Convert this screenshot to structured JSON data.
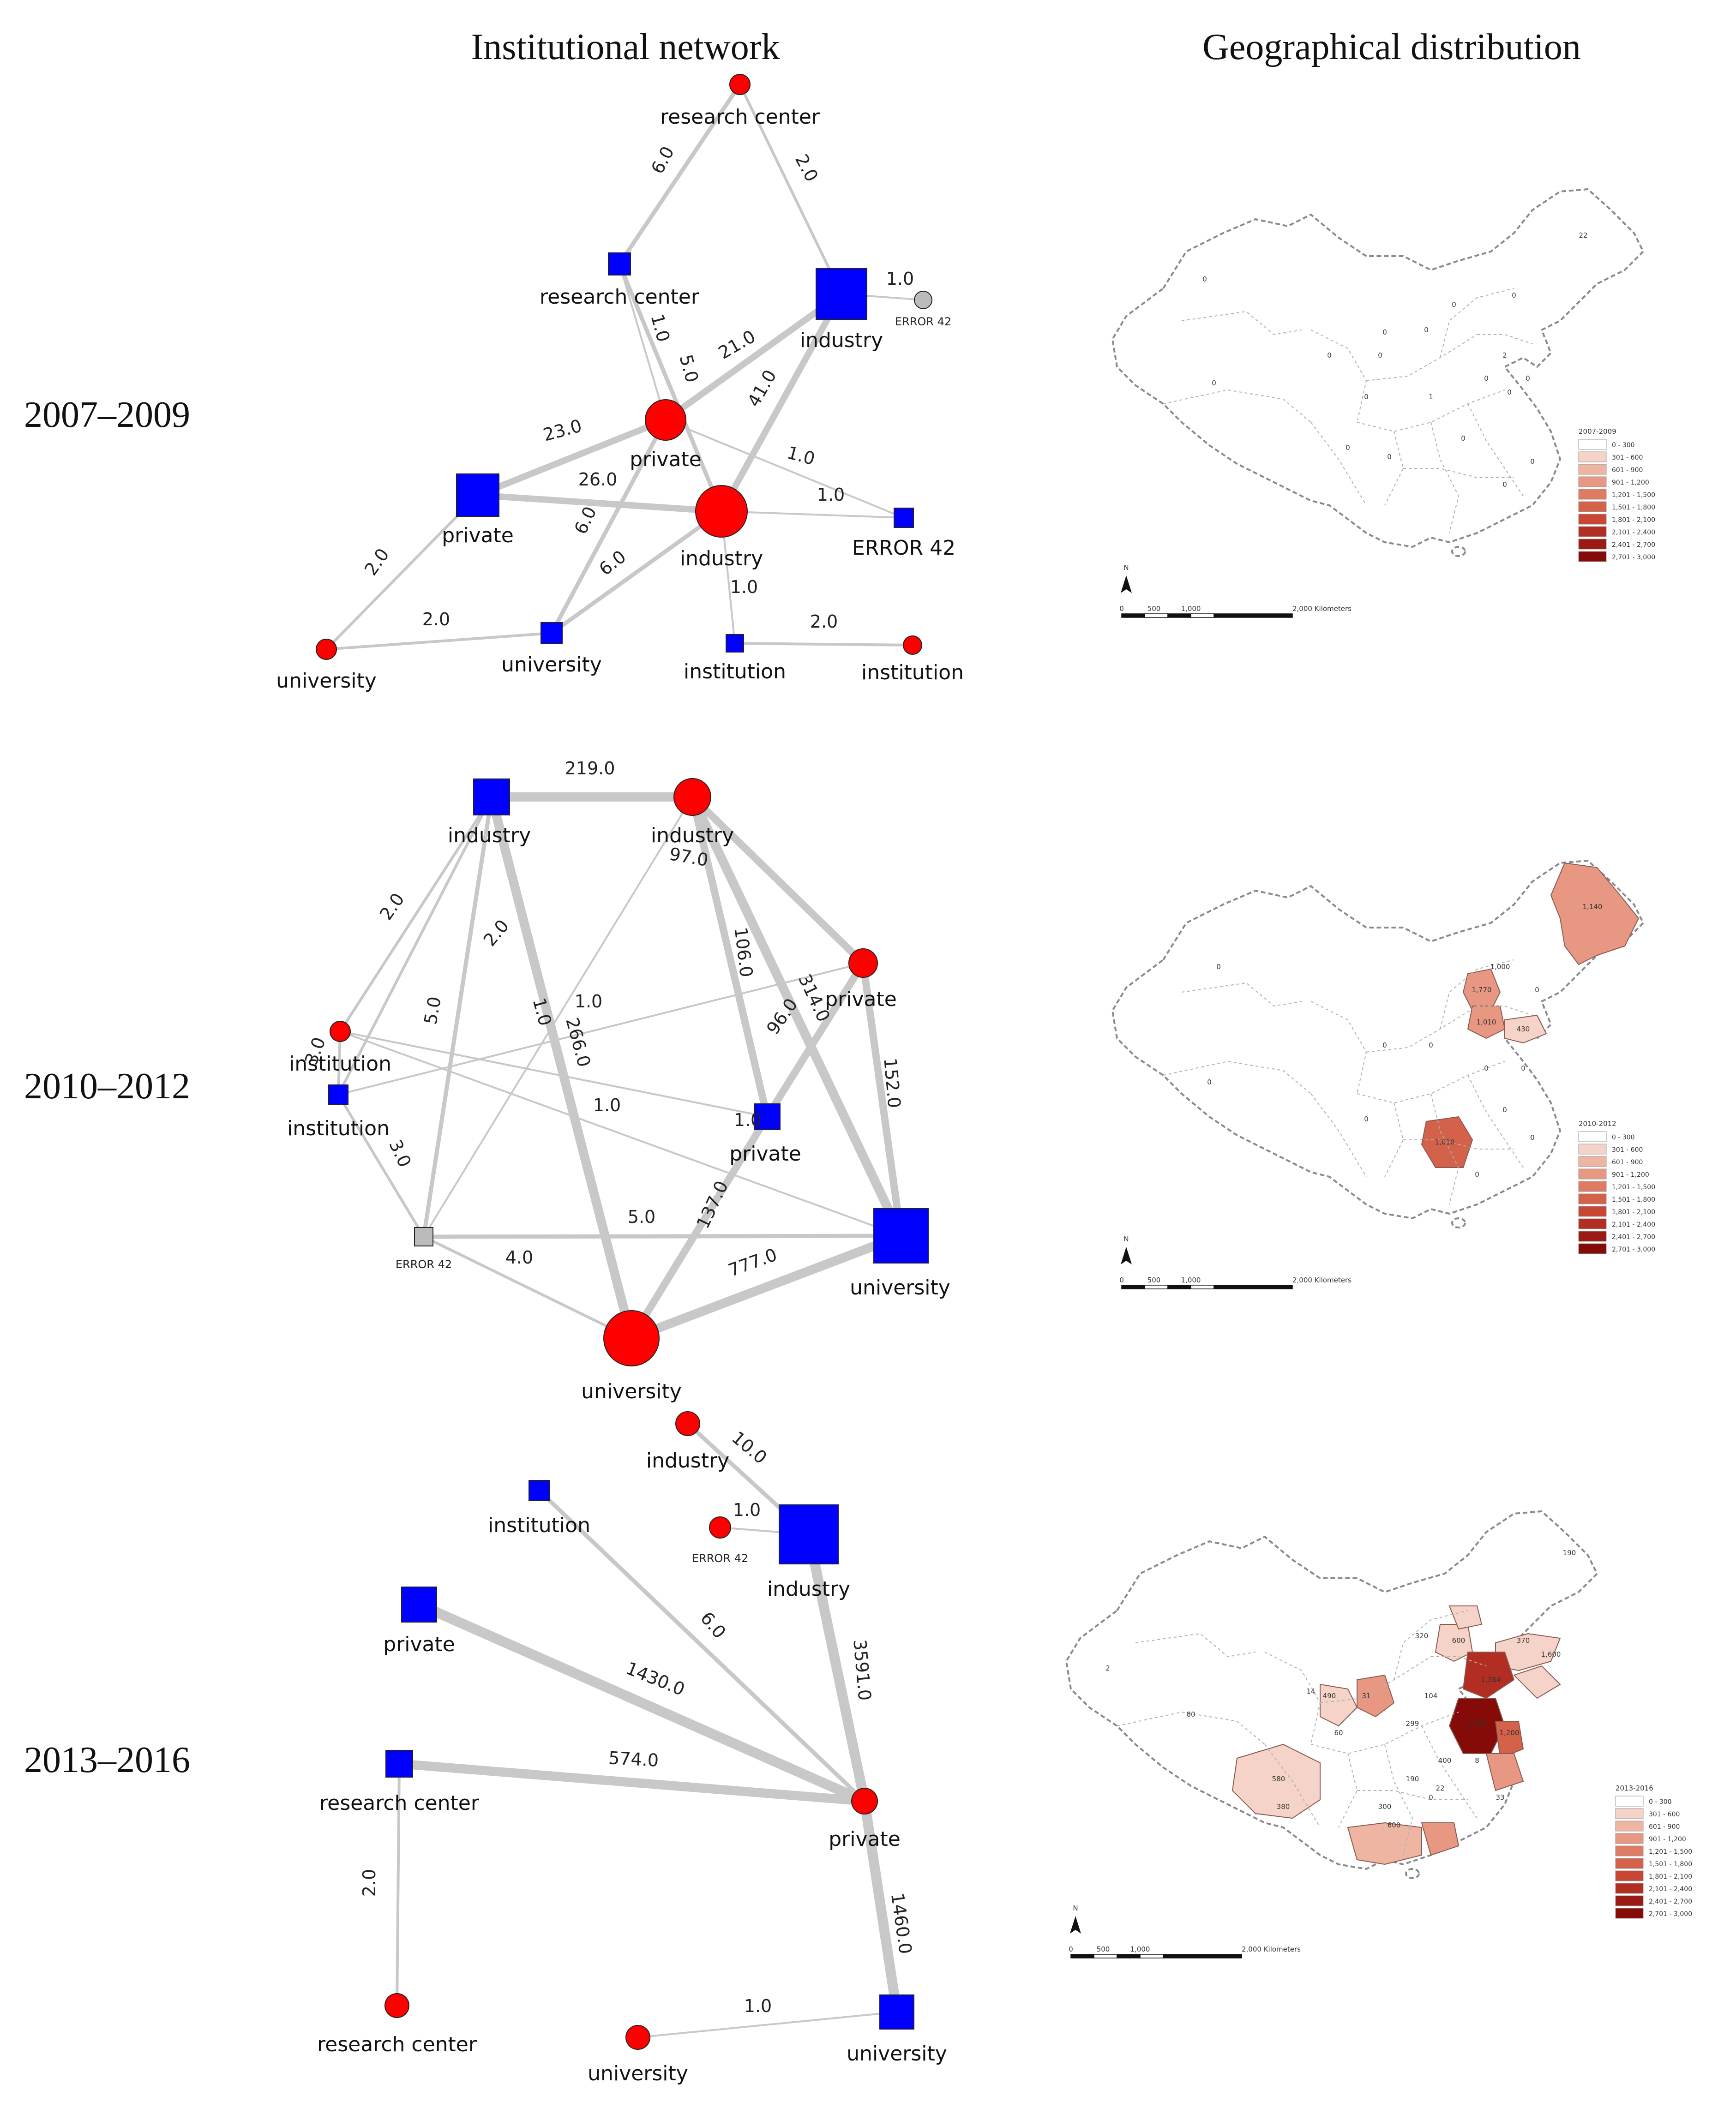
{
  "column_titles": {
    "network": "Institutional network",
    "geography": "Geographical distribution"
  },
  "colors": {
    "blue_node": "#0000ff",
    "red_node": "#ff0000",
    "gray_node": "#bbbbbb",
    "edge": "#c8c8c8"
  },
  "panels": [
    {
      "period": "2007–2009",
      "nodes": [
        {
          "id": "p1_rc_red",
          "label": "research center",
          "shape": "circle",
          "color": "red"
        },
        {
          "id": "p1_rc_blue",
          "label": "research center",
          "shape": "square",
          "color": "blue"
        },
        {
          "id": "p1_ind_blue",
          "label": "industry",
          "shape": "square",
          "color": "blue"
        },
        {
          "id": "p1_err_gray",
          "label": "ERROR 42",
          "shape": "circle",
          "color": "gray"
        },
        {
          "id": "p1_priv_red",
          "label": "private",
          "shape": "circle",
          "color": "red"
        },
        {
          "id": "p1_priv_blue",
          "label": "private",
          "shape": "square",
          "color": "blue"
        },
        {
          "id": "p1_ind_red",
          "label": "industry",
          "shape": "circle",
          "color": "red"
        },
        {
          "id": "p1_err_blue",
          "label": "ERROR 42",
          "shape": "square",
          "color": "blue"
        },
        {
          "id": "p1_uni_red",
          "label": "university",
          "shape": "circle",
          "color": "red"
        },
        {
          "id": "p1_uni_blue",
          "label": "university",
          "shape": "square",
          "color": "blue"
        },
        {
          "id": "p1_inst_blue",
          "label": "institution",
          "shape": "square",
          "color": "blue"
        },
        {
          "id": "p1_inst_red",
          "label": "institution",
          "shape": "circle",
          "color": "red"
        }
      ],
      "edges": [
        {
          "from": "p1_rc_red",
          "to": "p1_rc_blue",
          "weight": "6.0"
        },
        {
          "from": "p1_rc_red",
          "to": "p1_ind_blue",
          "weight": "2.0"
        },
        {
          "from": "p1_ind_blue",
          "to": "p1_err_gray",
          "weight": "1.0"
        },
        {
          "from": "p1_rc_blue",
          "to": "p1_priv_red",
          "weight": "1.0"
        },
        {
          "from": "p1_rc_blue",
          "to": "p1_ind_red",
          "weight": "5.0"
        },
        {
          "from": "p1_ind_blue",
          "to": "p1_priv_red",
          "weight": "21.0"
        },
        {
          "from": "p1_ind_blue",
          "to": "p1_ind_red",
          "weight": "41.0"
        },
        {
          "from": "p1_priv_red",
          "to": "p1_priv_blue",
          "weight": "23.0"
        },
        {
          "from": "p1_priv_red",
          "to": "p1_err_blue",
          "weight": "1.0"
        },
        {
          "from": "p1_priv_blue",
          "to": "p1_ind_red",
          "weight": "26.0"
        },
        {
          "from": "p1_ind_red",
          "to": "p1_err_blue",
          "weight": "1.0"
        },
        {
          "from": "p1_priv_red",
          "to": "p1_uni_blue",
          "weight": "6.0"
        },
        {
          "from": "p1_ind_red",
          "to": "p1_uni_blue",
          "weight": "6.0"
        },
        {
          "from": "p1_ind_red",
          "to": "p1_inst_blue",
          "weight": "1.0"
        },
        {
          "from": "p1_priv_blue",
          "to": "p1_uni_red",
          "weight": "2.0"
        },
        {
          "from": "p1_uni_red",
          "to": "p1_uni_blue",
          "weight": "2.0"
        },
        {
          "from": "p1_inst_blue",
          "to": "p1_inst_red",
          "weight": "2.0"
        }
      ],
      "map": {
        "legend_title": "2007-2009",
        "legend_classes": [
          "0 - 300",
          "301 - 600",
          "601 - 900",
          "901 - 1,200",
          "1,201 - 1,500",
          "1,501 - 1,800",
          "1,801 - 2,100",
          "2,101 - 2,400",
          "2,401 - 2,700",
          "2,701 - 3,000"
        ],
        "north": "N",
        "scale_labels": [
          "0",
          "500",
          "1,000",
          "2,000 Kilometers"
        ],
        "region_labels": [
          "22",
          "0",
          "0",
          "0",
          "0",
          "0",
          "0",
          "2",
          "0",
          "0",
          "0",
          "0",
          "0",
          "1",
          "0",
          "0",
          "0",
          "0",
          "0",
          "0"
        ]
      }
    },
    {
      "period": "2010–2012",
      "nodes": [
        {
          "id": "p2_ind_blue",
          "label": "industry",
          "shape": "square",
          "color": "blue"
        },
        {
          "id": "p2_ind_red",
          "label": "industry",
          "shape": "circle",
          "color": "red"
        },
        {
          "id": "p2_priv_red",
          "label": "private",
          "shape": "circle",
          "color": "red"
        },
        {
          "id": "p2_inst_red",
          "label": "institution",
          "shape": "circle",
          "color": "red"
        },
        {
          "id": "p2_inst_blue",
          "label": "institution",
          "shape": "square",
          "color": "blue"
        },
        {
          "id": "p2_priv_blue",
          "label": "private",
          "shape": "square",
          "color": "blue"
        },
        {
          "id": "p2_err_gray",
          "label": "ERROR 42",
          "shape": "square",
          "color": "gray"
        },
        {
          "id": "p2_uni_blue",
          "label": "university",
          "shape": "square",
          "color": "blue"
        },
        {
          "id": "p2_uni_red",
          "label": "university",
          "shape": "circle",
          "color": "red"
        }
      ],
      "edges": [
        {
          "from": "p2_ind_blue",
          "to": "p2_ind_red",
          "weight": "219.0"
        },
        {
          "from": "p2_ind_blue",
          "to": "p2_inst_red",
          "weight": "2.0"
        },
        {
          "from": "p2_ind_blue",
          "to": "p2_inst_blue",
          "weight": "2.0"
        },
        {
          "from": "p2_ind_blue",
          "to": "p2_err_gray",
          "weight": "5.0"
        },
        {
          "from": "p2_ind_blue",
          "to": "p2_uni_red",
          "weight": "266.0"
        },
        {
          "from": "p2_ind_red",
          "to": "p2_priv_red",
          "weight": "97.0"
        },
        {
          "from": "p2_ind_red",
          "to": "p2_priv_blue",
          "weight": "106.0"
        },
        {
          "from": "p2_ind_red",
          "to": "p2_uni_blue",
          "weight": "314.0"
        },
        {
          "from": "p2_ind_red",
          "to": "p2_err_gray",
          "weight": "1.0"
        },
        {
          "from": "p2_priv_red",
          "to": "p2_priv_blue",
          "weight": "96.0"
        },
        {
          "from": "p2_priv_red",
          "to": "p2_uni_blue",
          "weight": "152.0"
        },
        {
          "from": "p2_priv_red",
          "to": "p2_inst_blue",
          "weight": "1.0"
        },
        {
          "from": "p2_inst_red",
          "to": "p2_priv_blue",
          "weight": "1.0"
        },
        {
          "from": "p2_inst_red",
          "to": "p2_uni_blue",
          "weight": "1.0"
        },
        {
          "from": "p2_inst_red",
          "to": "p2_inst_blue",
          "weight": "3.0"
        },
        {
          "from": "p2_inst_blue",
          "to": "p2_err_gray",
          "weight": "3.0"
        },
        {
          "from": "p2_priv_blue",
          "to": "p2_uni_red",
          "weight": "137.0"
        },
        {
          "from": "p2_err_gray",
          "to": "p2_uni_blue",
          "weight": "5.0"
        },
        {
          "from": "p2_err_gray",
          "to": "p2_uni_red",
          "weight": "4.0"
        },
        {
          "from": "p2_uni_red",
          "to": "p2_uni_blue",
          "weight": "777.0"
        }
      ],
      "map": {
        "legend_title": "2010-2012",
        "legend_classes": [
          "0 - 300",
          "301 - 600",
          "601 - 900",
          "901 - 1,200",
          "1,201 - 1,500",
          "1,501 - 1,800",
          "1,801 - 2,100",
          "2,101 - 2,400",
          "2,401 - 2,700",
          "2,701 - 3,000"
        ],
        "north": "N",
        "scale_labels": [
          "0",
          "500",
          "1,000",
          "2,000 Kilometers"
        ],
        "region_labels": [
          "1,140",
          "1,770",
          "1,010",
          "430",
          "1,010",
          "1,000",
          "0",
          "0",
          "0",
          "0",
          "0",
          "0",
          "0",
          "0",
          "0",
          "0",
          "0"
        ]
      }
    },
    {
      "period": "2013–2016",
      "nodes": [
        {
          "id": "p3_ind_red",
          "label": "industry",
          "shape": "circle",
          "color": "red"
        },
        {
          "id": "p3_inst_blue",
          "label": "institution",
          "shape": "square",
          "color": "blue"
        },
        {
          "id": "p3_err_red",
          "label": "ERROR 42",
          "shape": "circle",
          "color": "red"
        },
        {
          "id": "p3_ind_blue",
          "label": "industry",
          "shape": "square",
          "color": "blue"
        },
        {
          "id": "p3_priv_blue",
          "label": "private",
          "shape": "square",
          "color": "blue"
        },
        {
          "id": "p3_rc_blue",
          "label": "research center",
          "shape": "square",
          "color": "blue"
        },
        {
          "id": "p3_priv_red",
          "label": "private",
          "shape": "circle",
          "color": "red"
        },
        {
          "id": "p3_rc_red",
          "label": "research center",
          "shape": "circle",
          "color": "red"
        },
        {
          "id": "p3_uni_red",
          "label": "university",
          "shape": "circle",
          "color": "red"
        },
        {
          "id": "p3_uni_blue",
          "label": "university",
          "shape": "square",
          "color": "blue"
        }
      ],
      "edges": [
        {
          "from": "p3_ind_red",
          "to": "p3_ind_blue",
          "weight": "10.0"
        },
        {
          "from": "p3_err_red",
          "to": "p3_ind_blue",
          "weight": "1.0"
        },
        {
          "from": "p3_inst_blue",
          "to": "p3_priv_red",
          "weight": "6.0"
        },
        {
          "from": "p3_ind_blue",
          "to": "p3_priv_red",
          "weight": "3591.0"
        },
        {
          "from": "p3_priv_blue",
          "to": "p3_priv_red",
          "weight": "1430.0"
        },
        {
          "from": "p3_rc_blue",
          "to": "p3_priv_red",
          "weight": "574.0"
        },
        {
          "from": "p3_rc_blue",
          "to": "p3_rc_red",
          "weight": "2.0"
        },
        {
          "from": "p3_priv_red",
          "to": "p3_uni_blue",
          "weight": "1460.0"
        },
        {
          "from": "p3_uni_red",
          "to": "p3_uni_blue",
          "weight": "1.0"
        }
      ],
      "map": {
        "legend_title": "2013-2016",
        "legend_classes": [
          "0 - 300",
          "301 - 600",
          "601 - 900",
          "901 - 1,200",
          "1,201 - 1,500",
          "1,501 - 1,800",
          "1,801 - 2,100",
          "2,101 - 2,400",
          "2,401 - 2,700",
          "2,701 - 3,000"
        ],
        "north": "N",
        "scale_labels": [
          "0",
          "500",
          "1,000",
          "2,000 Kilometers"
        ],
        "region_labels": [
          "1,600",
          "1,364",
          "2,400",
          "1,200",
          "580",
          "490",
          "600",
          "320",
          "400",
          "600",
          "370",
          "80",
          "190",
          "104",
          "299",
          "190",
          "22",
          "33",
          "31",
          "14",
          "380",
          "300",
          "60",
          "8",
          "2",
          "0"
        ]
      }
    }
  ]
}
